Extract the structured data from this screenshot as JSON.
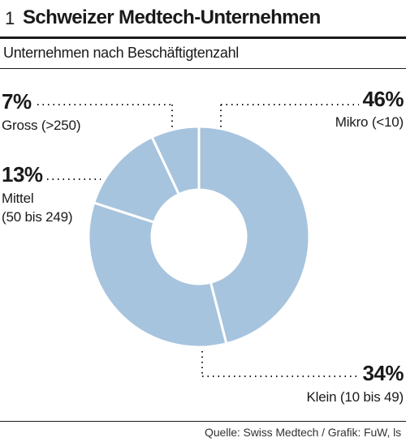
{
  "header": {
    "figure_number": "1",
    "title": "Schweizer Medtech-Unternehmen",
    "subtitle": "Unternehmen nach Beschäftigtenzahl"
  },
  "footer": {
    "source": "Quelle: Swiss Medtech / Grafik: FuW, ls"
  },
  "colors": {
    "slice": "#a7c4de",
    "separator": "#ffffff",
    "text": "#1a1a1a"
  },
  "chart_data": {
    "type": "pie",
    "donut": true,
    "title": "Schweizer Medtech-Unternehmen",
    "subtitle": "Unternehmen nach Beschäftigtenzahl",
    "slices": [
      {
        "label": "Mikro (<10)",
        "value": 46,
        "display": "46%"
      },
      {
        "label": "Klein (10 bis 49)",
        "value": 34,
        "display": "34%"
      },
      {
        "label": "Mittel (50 bis 249)",
        "value": 13,
        "display": "13%"
      },
      {
        "label": "Gross (>250)",
        "value": 7,
        "display": "7%"
      }
    ]
  }
}
